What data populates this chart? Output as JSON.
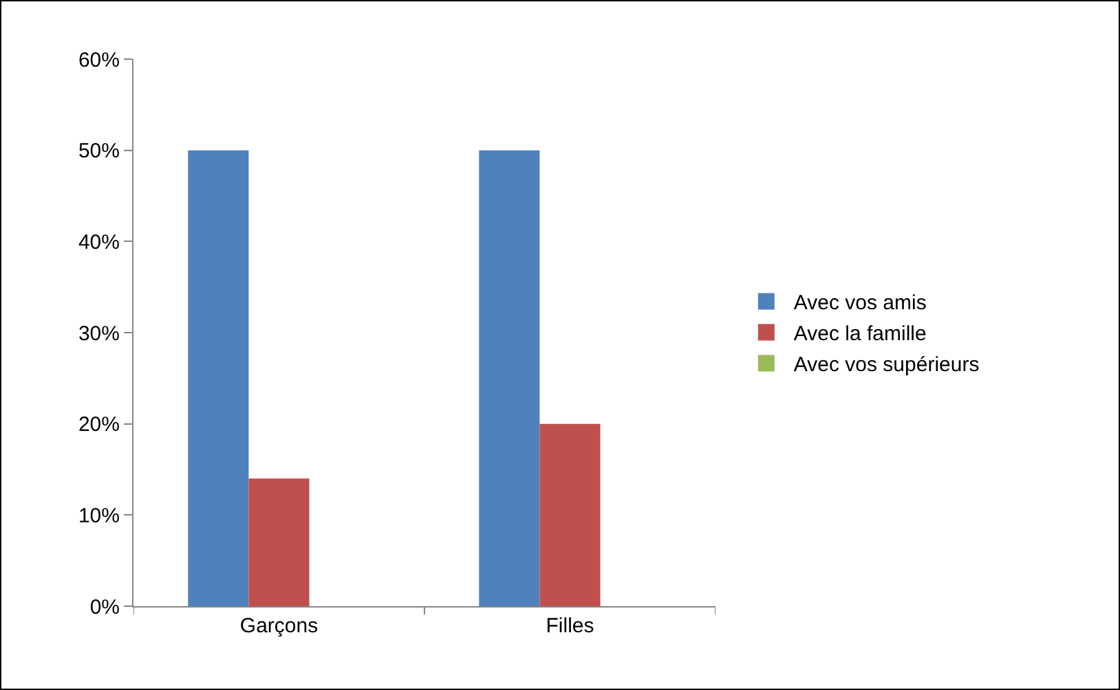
{
  "chart_data": {
    "type": "bar",
    "categories": [
      "Garçons",
      "Filles"
    ],
    "series": [
      {
        "name": "Avec vos amis",
        "color": "#4f81bd",
        "values": [
          50,
          50
        ]
      },
      {
        "name": "Avec la famille",
        "color": "#c0504d",
        "values": [
          14,
          20
        ]
      },
      {
        "name": "Avec vos supérieurs",
        "color": "#9bbb59",
        "values": [
          0,
          0
        ]
      }
    ],
    "ylim": [
      0,
      60
    ],
    "yticks": [
      {
        "value": 0,
        "label": "0%"
      },
      {
        "value": 10,
        "label": "10%"
      },
      {
        "value": 20,
        "label": "20%"
      },
      {
        "value": 30,
        "label": "30%"
      },
      {
        "value": 40,
        "label": "40%"
      },
      {
        "value": 50,
        "label": "50%"
      },
      {
        "value": 60,
        "label": "60%"
      }
    ],
    "grid": false,
    "legend": "right"
  }
}
